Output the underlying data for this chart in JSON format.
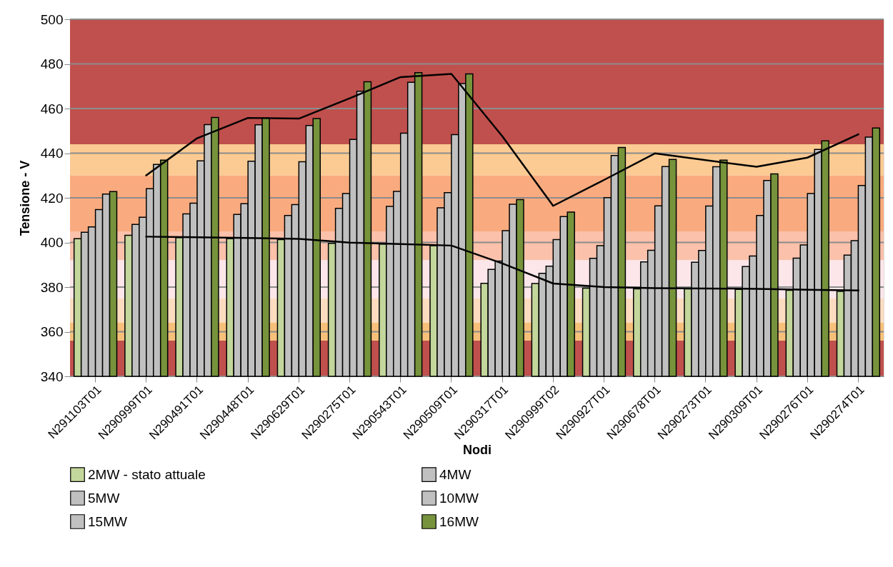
{
  "chart_data": {
    "type": "bar",
    "xlabel": "Nodi",
    "ylabel": "Tensione - V",
    "categories": [
      "N291103T01",
      "N290999T01",
      "N290491T01",
      "N290448T01",
      "N290629T01",
      "N290275T01",
      "N290543T01",
      "N290509T01",
      "N290317T01",
      "N290999T02",
      "N290927T01",
      "N290678T01",
      "N290273T01",
      "N290309T01",
      "N290276T01",
      "N290274T01"
    ],
    "series": [
      {
        "name": "2MW - stato attuale",
        "color": "#c3d69b",
        "values": [
          401.7,
          403.2,
          402.2,
          401.7,
          401.3,
          399.6,
          399.3,
          398.6,
          381.7,
          381.6,
          379.5,
          379.2,
          379.2,
          379.0,
          378.6,
          378.1
        ]
      },
      {
        "name": "4MW",
        "color": "#c0c0c0",
        "values": [
          404.6,
          408.1,
          412.8,
          412.6,
          412.1,
          415.3,
          416.2,
          415.5,
          387.9,
          386.2,
          392.9,
          391.3,
          391.1,
          389.2,
          393.0,
          394.3
        ]
      },
      {
        "name": "5MW",
        "color": "#c0c0c0",
        "values": [
          407.0,
          411.3,
          417.6,
          417.4,
          417.0,
          421.9,
          422.9,
          422.3,
          391.7,
          389.4,
          398.6,
          396.5,
          396.4,
          393.9,
          398.9,
          400.8
        ]
      },
      {
        "name": "10MW",
        "color": "#c0c0c0",
        "values": [
          414.7,
          424.1,
          436.6,
          436.4,
          436.2,
          446.2,
          449.0,
          448.3,
          405.3,
          401.3,
          420.1,
          416.4,
          416.3,
          412.1,
          421.9,
          425.5
        ]
      },
      {
        "name": "15MW",
        "color": "#c0c0c0",
        "values": [
          421.7,
          435.0,
          452.8,
          452.7,
          452.4,
          467.8,
          471.8,
          471.2,
          417.1,
          411.6,
          439.0,
          434.0,
          433.9,
          427.8,
          441.7,
          447.2
        ]
      },
      {
        "name": "16MW",
        "color": "#77933c",
        "values": [
          422.8,
          436.9,
          456.0,
          455.8,
          455.5,
          472.0,
          476.1,
          475.5,
          419.2,
          413.6,
          442.6,
          437.2,
          436.9,
          430.7,
          445.5,
          451.3
        ]
      },
      {
        "type": "line",
        "color": "#000000",
        "values": [
          null,
          402.6,
          402.3,
          402.0,
          401.6,
          399.9,
          399.3,
          398.6,
          390.6,
          381.6,
          380.0,
          379.5,
          379.4,
          379.2,
          378.8,
          378.5
        ]
      },
      {
        "type": "line",
        "color": "#000000",
        "values": [
          null,
          430.1,
          446.7,
          455.8,
          455.5,
          464.6,
          474.1,
          475.5,
          447.6,
          416.4,
          428.0,
          439.9,
          436.9,
          433.9,
          438.0,
          448.4
        ]
      }
    ],
    "ylim": [
      340,
      500
    ],
    "yticks": [
      340,
      360,
      380,
      400,
      420,
      440,
      460,
      480,
      500
    ],
    "grid": "y",
    "legend": "bottom",
    "bands": [
      {
        "axis": "y",
        "from": 444,
        "to": 500,
        "color": "#c0504d"
      },
      {
        "axis": "y",
        "from": 430,
        "to": 444,
        "color": "#fbcb93"
      },
      {
        "axis": "y",
        "from": 405,
        "to": 430,
        "color": "#f9ab7f"
      },
      {
        "axis": "y",
        "from": 392,
        "to": 405,
        "color": "#fbc1aa"
      },
      {
        "axis": "y",
        "from": 375,
        "to": 392,
        "color": "#fde6ea"
      },
      {
        "axis": "y",
        "from": 364,
        "to": 375,
        "color": "#fcdcc0"
      },
      {
        "axis": "y",
        "from": 356,
        "to": 364,
        "color": "#f7c07a"
      },
      {
        "axis": "y",
        "from": 340,
        "to": 356,
        "color": "#c0504d"
      }
    ]
  }
}
